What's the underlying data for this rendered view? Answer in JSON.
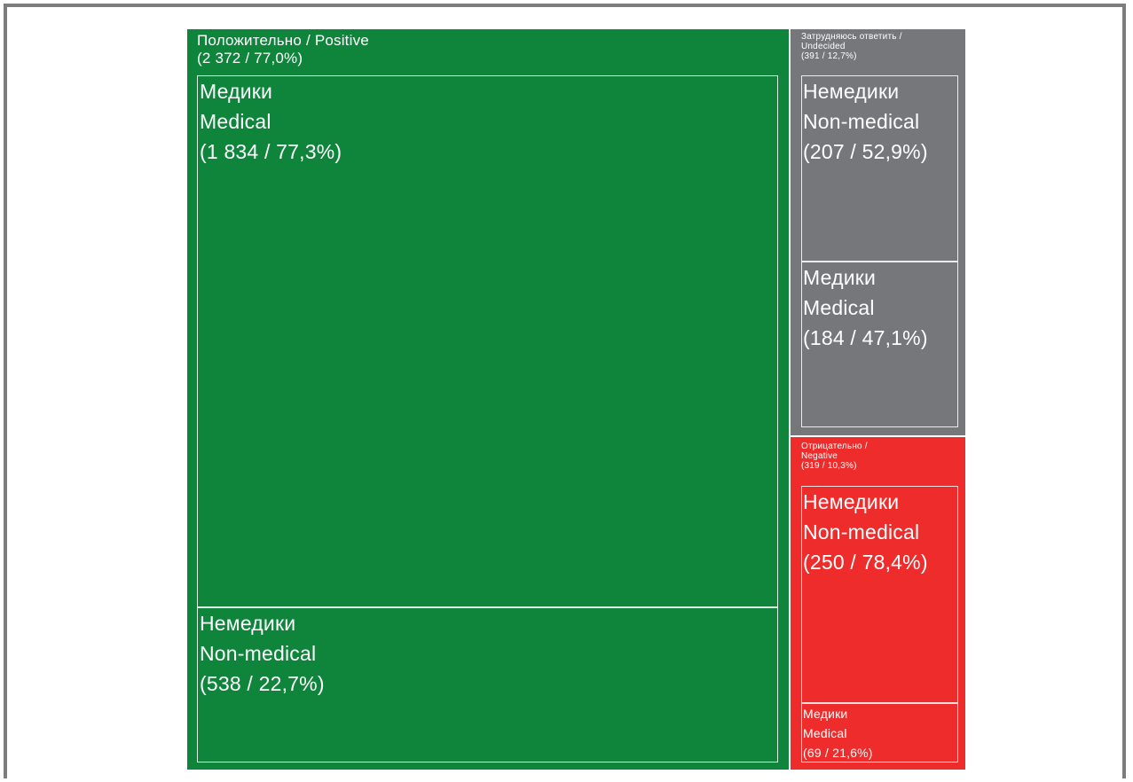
{
  "chart_data": {
    "type": "treemap",
    "colors": {
      "positive": "#0f853c",
      "undecided": "#75777b",
      "negative": "#ee2c2c"
    },
    "groups": [
      {
        "key": "positive",
        "label": "Положительно / Positive",
        "count": "2 372",
        "pct": "77,0%",
        "count_label": "(2 372 / 77,0%)",
        "children": [
          {
            "label_ru": "Медики",
            "label_en": "Medical",
            "count": "1 834",
            "pct": "77,3%",
            "count_label": "(1 834 / 77,3%)"
          },
          {
            "label_ru": "Немедики",
            "label_en": "Non-medical",
            "count": "538",
            "pct": "22,7%",
            "count_label": "(538 / 22,7%)"
          }
        ]
      },
      {
        "key": "undecided",
        "label": "Затрудняюсь ответить / Undecided",
        "label_line1": "Затрудняюсь ответить /",
        "label_line2": "Undecided",
        "count": "391",
        "pct": "12,7%",
        "count_label": "(391 / 12,7%)",
        "children": [
          {
            "label_ru": "Немедики",
            "label_en": "Non-medical",
            "count": "207",
            "pct": "52,9%",
            "count_label": "(207 / 52,9%)"
          },
          {
            "label_ru": "Медики",
            "label_en": "Medical",
            "count": "184",
            "pct": "47,1%",
            "count_label": "(184 / 47,1%)"
          }
        ]
      },
      {
        "key": "negative",
        "label": "Отрицательно / Negative",
        "label_line1": "Отрицательно /",
        "label_line2": "Negative",
        "count": "319",
        "pct": "10,3%",
        "count_label": "(319 / 10,3%)",
        "children": [
          {
            "label_ru": "Немедики",
            "label_en": "Non-medical",
            "count": "250",
            "pct": "78,4%",
            "count_label": "(250 / 78,4%)"
          },
          {
            "label_ru": "Медики",
            "label_en": "Medical",
            "count": "69",
            "pct": "21,6%",
            "count_label": "(69 / 21,6%)"
          }
        ]
      }
    ]
  }
}
